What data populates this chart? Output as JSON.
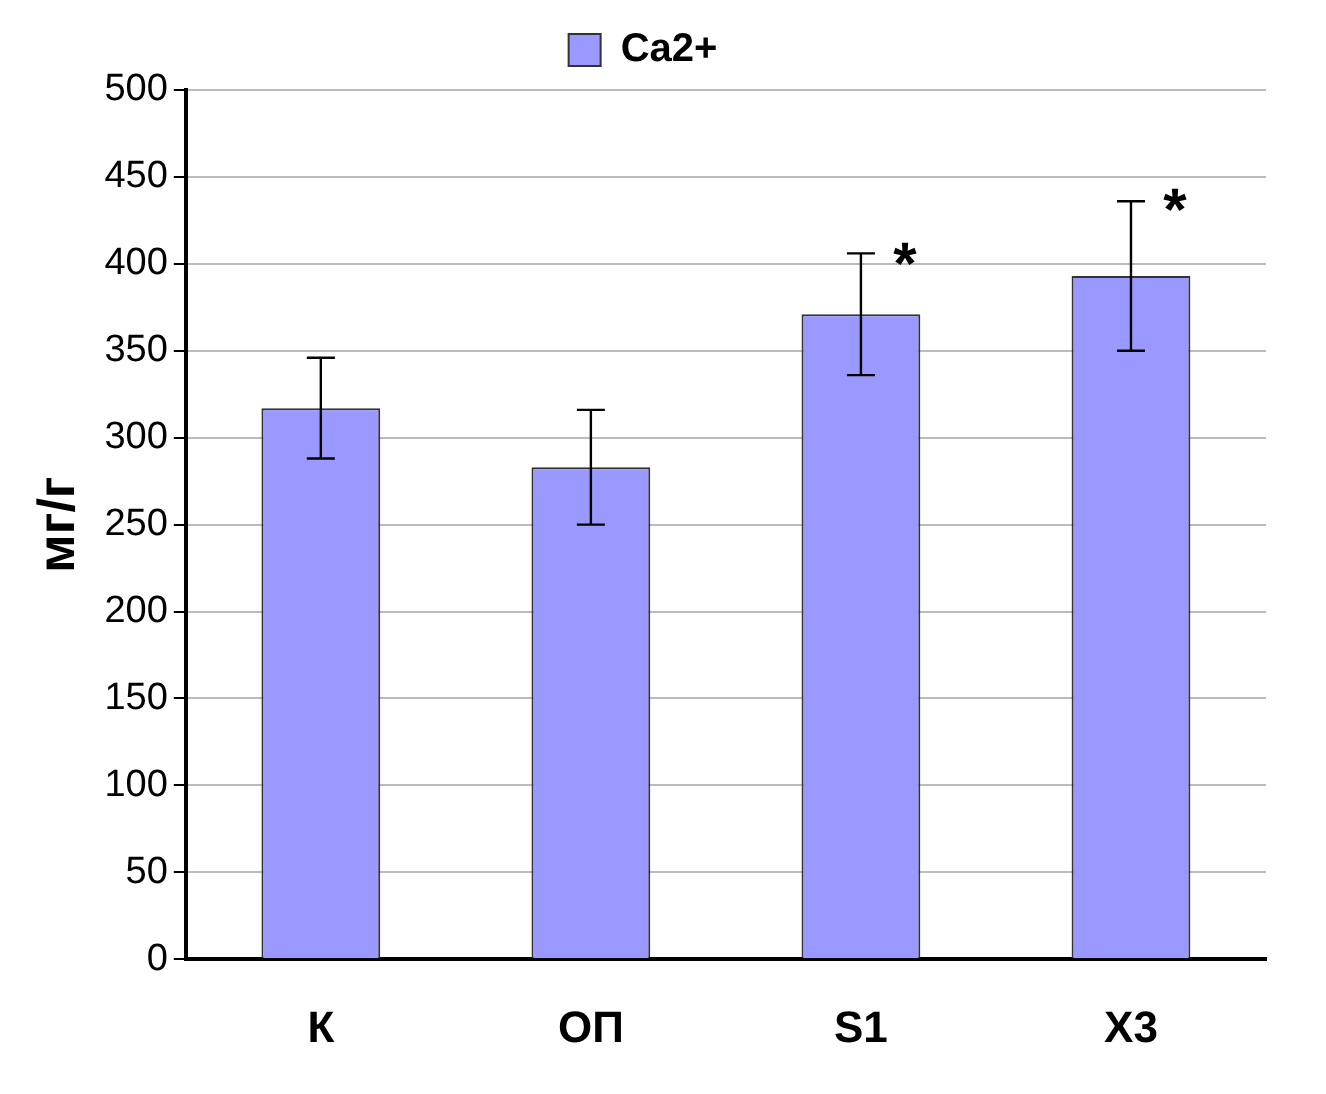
{
  "chart_data": {
    "type": "bar",
    "ylabel": "мг/г",
    "categories": [
      "К",
      "ОП",
      "S1",
      "Х3"
    ],
    "series": [
      {
        "name": "Ca2+",
        "color": "#9999ff",
        "values": [
          317,
          283,
          371,
          393
        ],
        "errors": [
          29,
          33,
          35,
          43
        ]
      }
    ],
    "ylim": [
      0,
      500
    ],
    "yticks": [
      0,
      50,
      100,
      150,
      200,
      250,
      300,
      350,
      400,
      450,
      500
    ],
    "grid": "y",
    "legend": "top",
    "annotations": [
      {
        "text": "*",
        "x": "S1",
        "y": 405
      },
      {
        "text": "*",
        "x": "Х3",
        "y": 436
      }
    ]
  }
}
